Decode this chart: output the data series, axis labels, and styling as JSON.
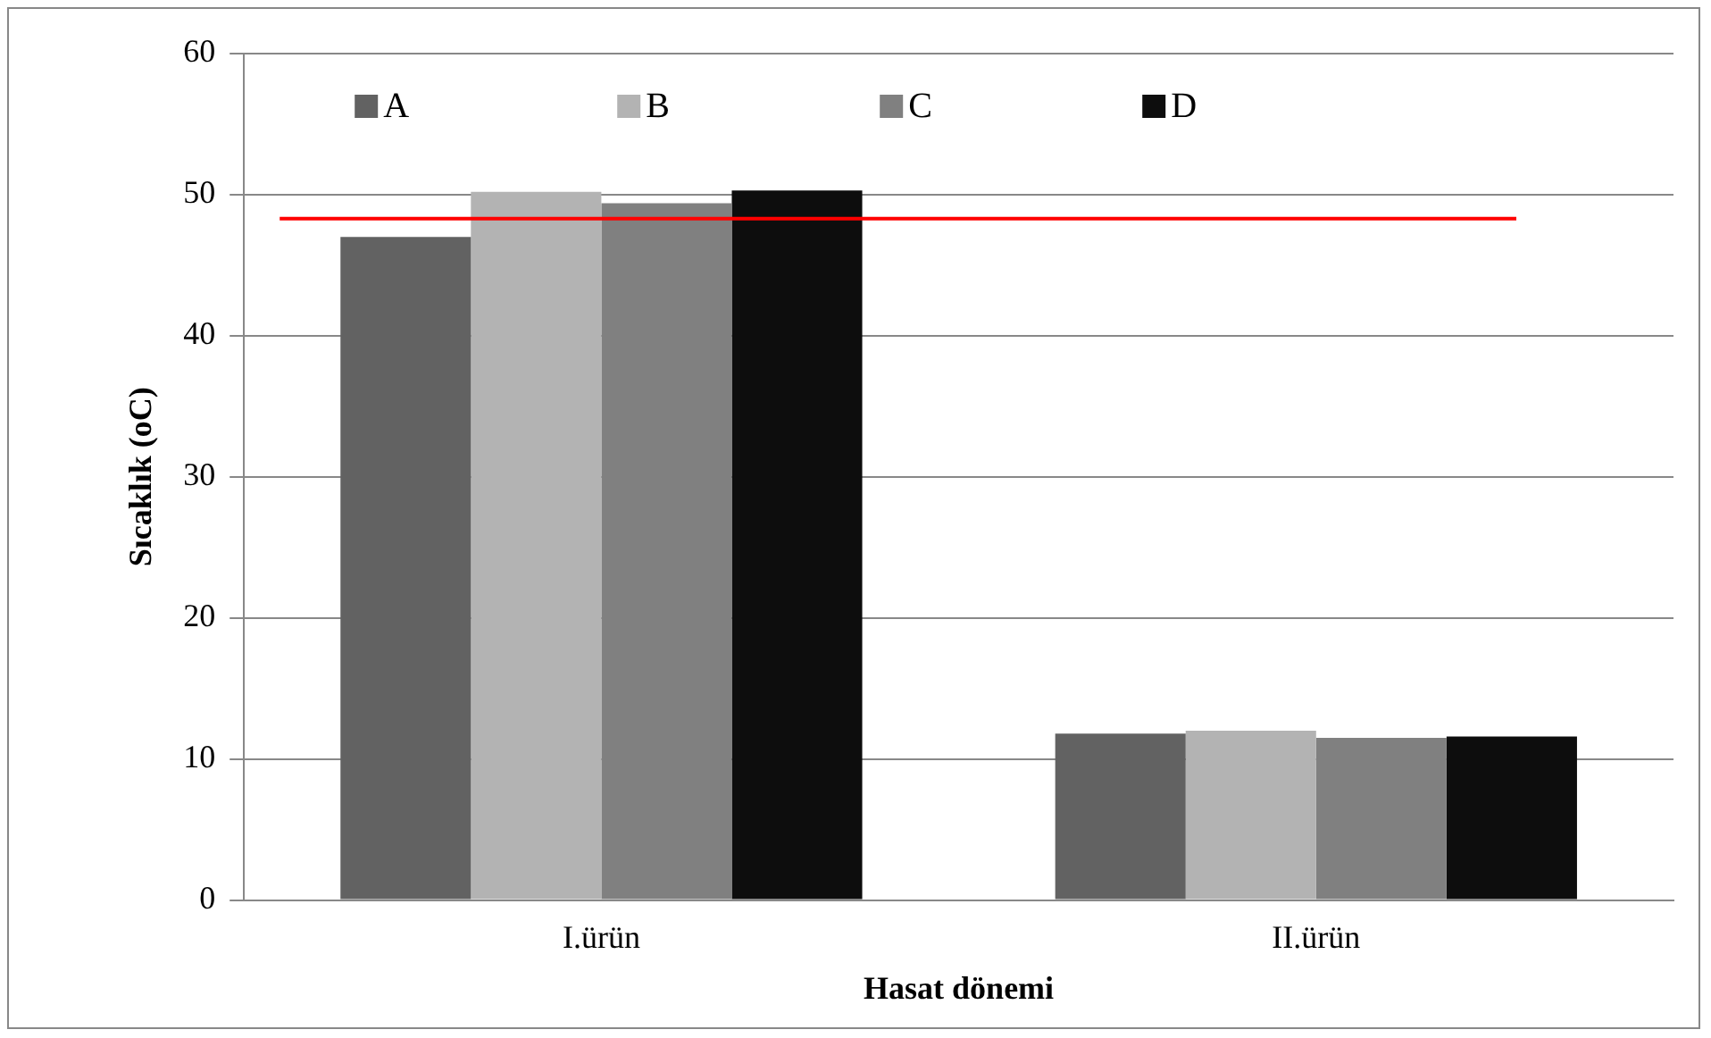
{
  "chart_data": {
    "type": "bar",
    "xlabel": "Hasat dönemi",
    "ylabel": "Sıcaklık (oC)",
    "categories": [
      "I.ürün",
      "II.ürün"
    ],
    "series": [
      {
        "name": "A",
        "color": "#626262",
        "values": [
          47.0,
          11.8
        ]
      },
      {
        "name": "B",
        "color": "#b3b3b3",
        "values": [
          50.2,
          12.0
        ]
      },
      {
        "name": "C",
        "color": "#808080",
        "values": [
          49.4,
          11.5
        ]
      },
      {
        "name": "D",
        "color": "#0d0d0d",
        "values": [
          50.3,
          11.6
        ]
      }
    ],
    "ylim": [
      0,
      60
    ],
    "yticks": [
      0,
      10,
      20,
      30,
      40,
      50,
      60
    ],
    "grid": "y",
    "legend": "top left",
    "ref_lines": [
      {
        "axis": "y",
        "value": 48.3,
        "color": "#ff0000"
      }
    ]
  }
}
